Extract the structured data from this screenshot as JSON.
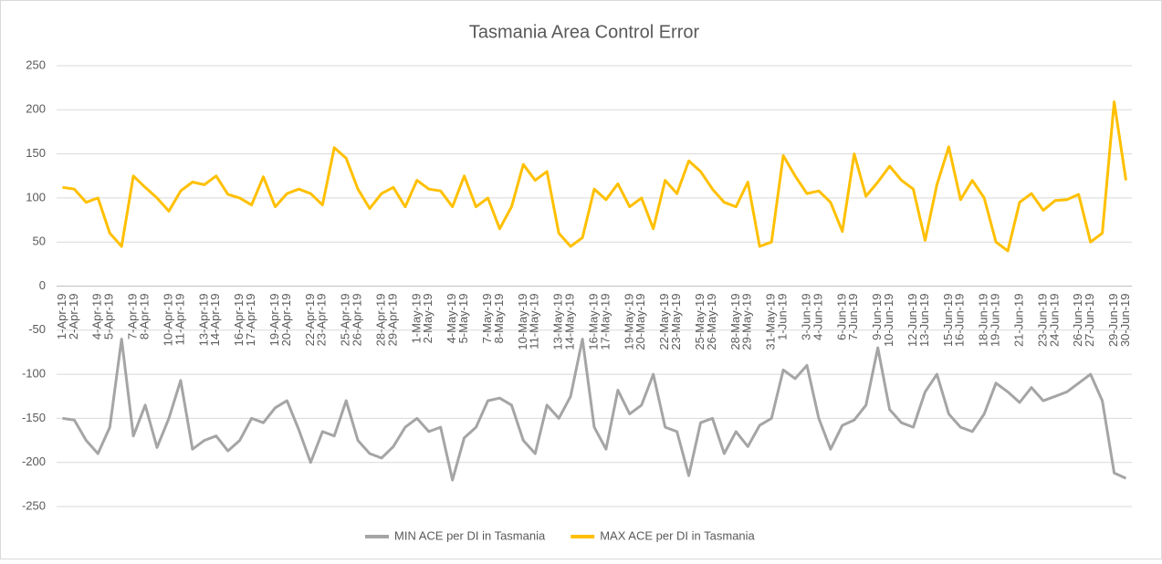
{
  "chart_data": {
    "type": "line",
    "title": "Tasmania Area Control Error",
    "categories": [
      "1-Apr-19",
      "2-Apr-19",
      null,
      "4-Apr-19",
      "5-Apr-19",
      null,
      "7-Apr-19",
      "8-Apr-19",
      null,
      "10-Apr-19",
      "11-Apr-19",
      null,
      "13-Apr-19",
      "14-Apr-19",
      null,
      "16-Apr-19",
      "17-Apr-19",
      null,
      "19-Apr-19",
      "20-Apr-19",
      null,
      "22-Apr-19",
      "23-Apr-19",
      null,
      "25-Apr-19",
      "26-Apr-19",
      null,
      "28-Apr-19",
      "29-Apr-19",
      null,
      "1-May-19",
      "2-May-19",
      null,
      "4-May-19",
      "5-May-19",
      null,
      "7-May-19",
      "8-May-19",
      null,
      "10-May-19",
      "11-May-19",
      null,
      "13-May-19",
      "14-May-19",
      null,
      "16-May-19",
      "17-May-19",
      null,
      "19-May-19",
      "20-May-19",
      null,
      "22-May-19",
      "23-May-19",
      null,
      "25-May-19",
      "26-May-19",
      null,
      "28-May-19",
      "29-May-19",
      null,
      "31-May-19",
      "1-Jun-19",
      null,
      "3-Jun-19",
      "4-Jun-19",
      null,
      "6-Jun-19",
      "7-Jun-19",
      null,
      "9-Jun-19",
      "10-Jun-19",
      null,
      "12-Jun-19",
      "13-Jun-19",
      null,
      "15-Jun-19",
      "16-Jun-19",
      null,
      "18-Jun-19",
      "19-Jun-19",
      null,
      "21-Jun-19",
      null,
      "23-Jun-19",
      "24-Jun-19",
      null,
      "26-Jun-19",
      "27-Jun-19",
      null,
      "29-Jun-19",
      "30-Jun-19"
    ],
    "series": [
      {
        "name": "MIN ACE per DI in Tasmania",
        "color": "#a5a5a5",
        "values": [
          -150,
          -152,
          -175,
          -190,
          -160,
          -60,
          -170,
          -135,
          -183,
          -150,
          -107,
          -185,
          -175,
          -170,
          -187,
          -175,
          -150,
          -155,
          -138,
          -130,
          -163,
          -200,
          -165,
          -170,
          -130,
          -175,
          -190,
          -195,
          -182,
          -160,
          -150,
          -165,
          -160,
          -220,
          -172,
          -160,
          -130,
          -127,
          -135,
          -175,
          -190,
          -135,
          -150,
          -125,
          -60,
          -160,
          -185,
          -118,
          -145,
          -135,
          -100,
          -160,
          -165,
          -215,
          -155,
          -150,
          -190,
          -165,
          -182,
          -158,
          -150,
          -95,
          -105,
          -90,
          -150,
          -185,
          -158,
          -152,
          -135,
          -70,
          -140,
          -155,
          -160,
          -120,
          -100,
          -145,
          -160,
          -165,
          -145,
          -110,
          -120,
          -132,
          -115,
          -130,
          -125,
          -120,
          -110,
          -100,
          -130,
          -212,
          -218
        ]
      },
      {
        "name": "MAX ACE per DI in Tasmania",
        "color": "#ffc000",
        "values": [
          112,
          110,
          95,
          100,
          60,
          45,
          125,
          112,
          100,
          85,
          108,
          118,
          115,
          125,
          104,
          100,
          92,
          124,
          90,
          105,
          110,
          105,
          92,
          157,
          145,
          110,
          88,
          105,
          112,
          90,
          120,
          110,
          108,
          90,
          125,
          90,
          100,
          65,
          90,
          138,
          120,
          130,
          60,
          45,
          55,
          110,
          98,
          116,
          90,
          100,
          65,
          120,
          105,
          142,
          130,
          110,
          95,
          90,
          118,
          45,
          50,
          148,
          125,
          105,
          108,
          95,
          62,
          150,
          102,
          118,
          136,
          120,
          110,
          52,
          115,
          158,
          98,
          120,
          100,
          50,
          40,
          95,
          105,
          86,
          97,
          98,
          104,
          50,
          60,
          209,
          120
        ]
      }
    ],
    "ylim": [
      -250,
      250
    ],
    "yticks": [
      -250,
      -200,
      -150,
      -100,
      -50,
      0,
      50,
      100,
      150,
      200,
      250
    ],
    "grid": true,
    "legend": "bottom"
  }
}
